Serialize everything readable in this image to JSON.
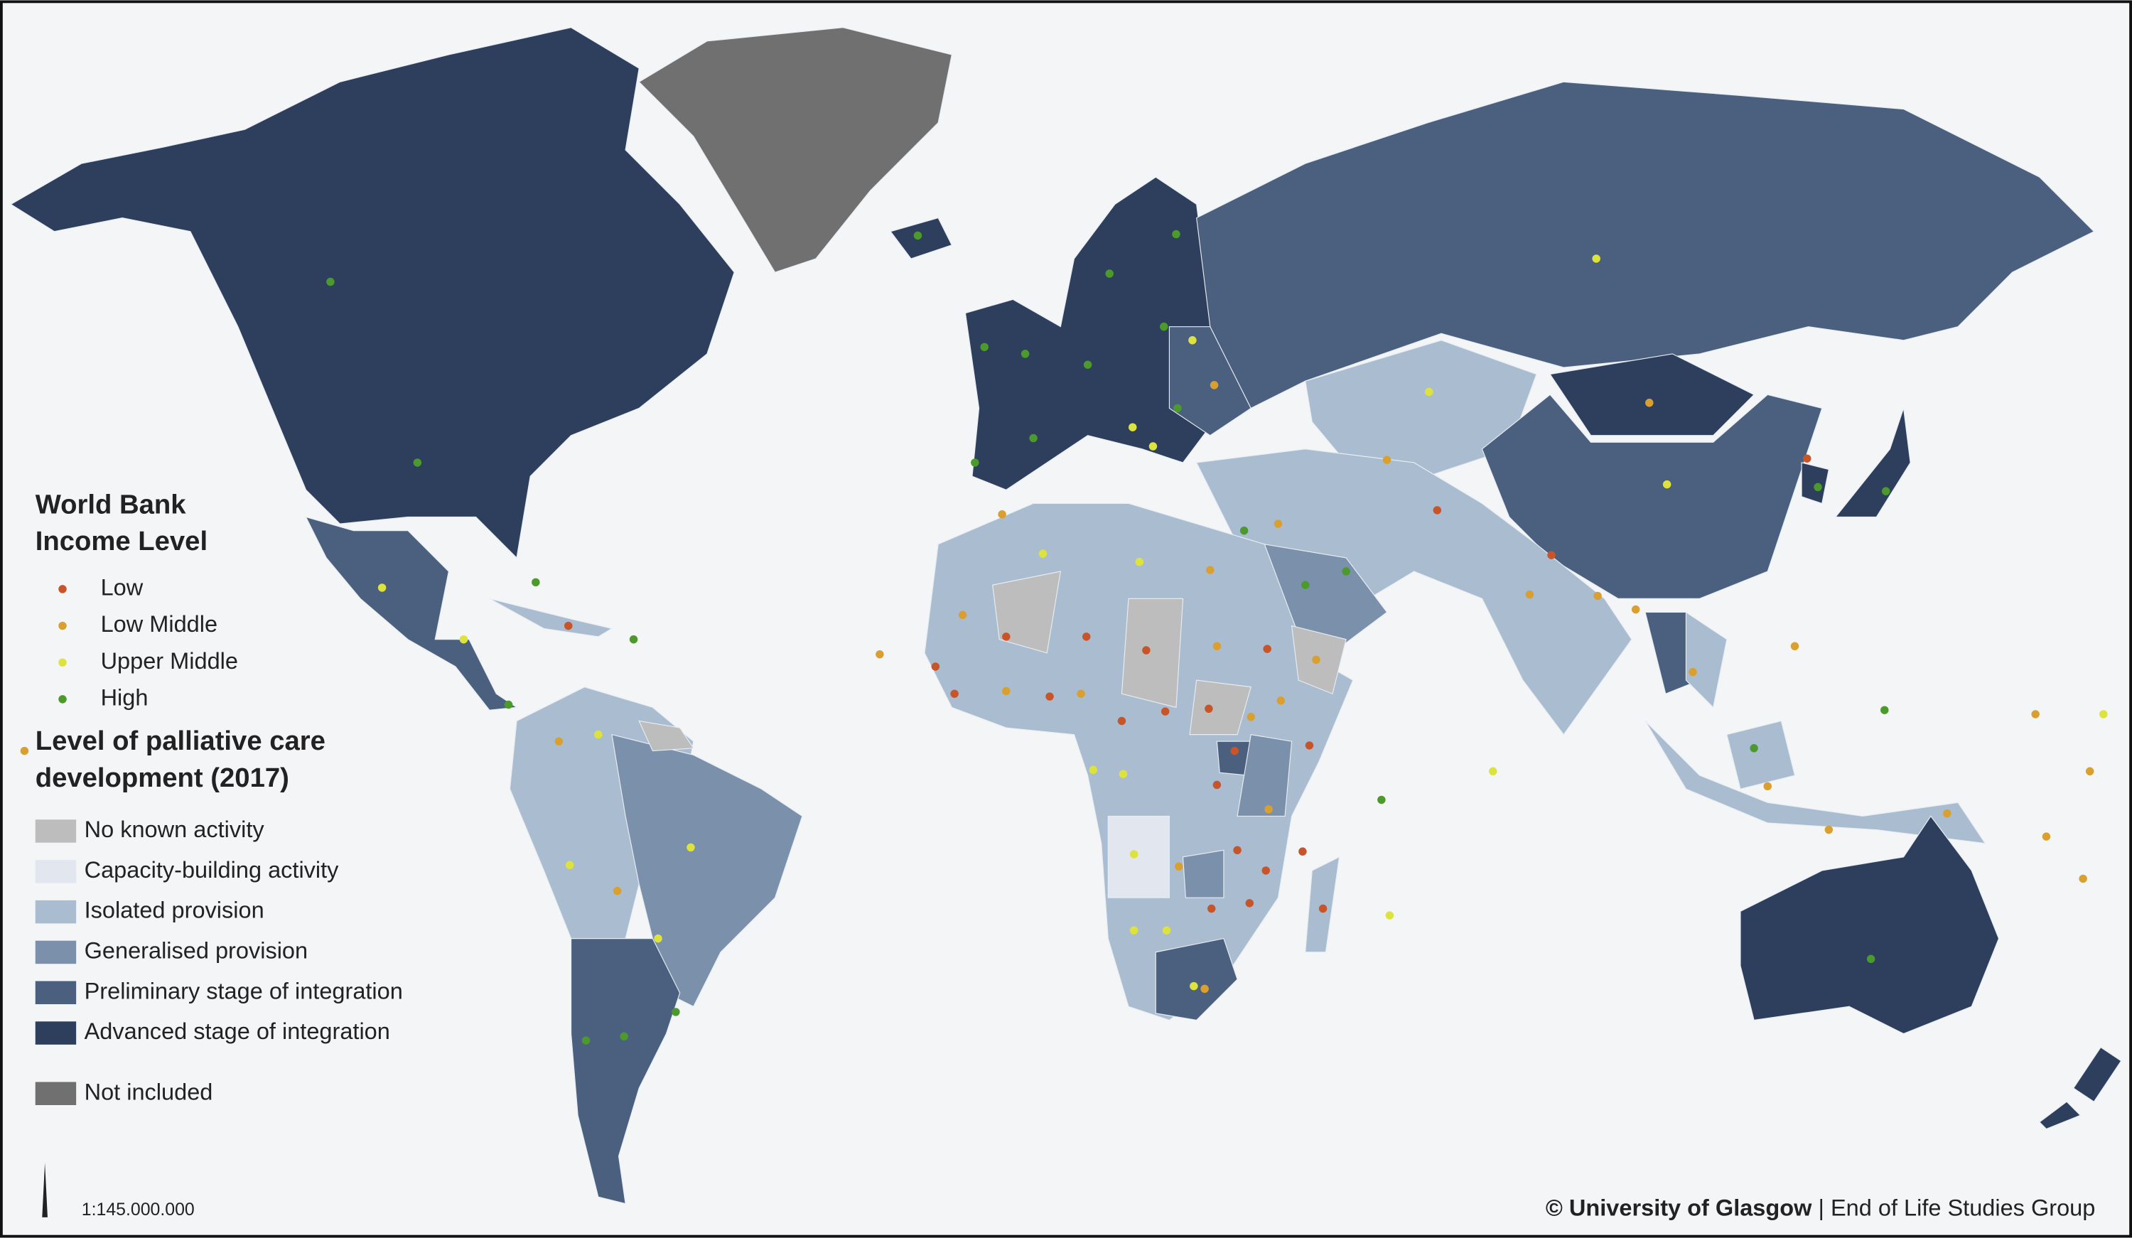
{
  "legend": {
    "income_title": [
      "World Bank",
      "Income Level"
    ],
    "income_items": [
      {
        "label": "Low",
        "color": "#c8552a"
      },
      {
        "label": "Low Middle",
        "color": "#d9a030"
      },
      {
        "label": "Upper Middle",
        "color": "#dde33c"
      },
      {
        "label": "High",
        "color": "#4c9a2c"
      }
    ],
    "care_title": [
      "Level of palliative care",
      "development (2017)"
    ],
    "care_items": [
      {
        "label": "No known activity",
        "color": "#bdbdbd"
      },
      {
        "label": "Capacity-building activity",
        "color": "#e2e7ef"
      },
      {
        "label": "Isolated provision",
        "color": "#aabdd0"
      },
      {
        "label": "Generalised provision",
        "color": "#7b91ab"
      },
      {
        "label": "Preliminary stage of integration",
        "color": "#4a607e"
      },
      {
        "label": "Advanced stage of integration",
        "color": "#2d3f5c"
      }
    ],
    "not_included": {
      "label": "Not included",
      "color": "#707070"
    }
  },
  "scale": "1:145.000.000",
  "credit": {
    "org": "© University of Glasgow",
    "separator": "|",
    "group": "End of Life Studies Group"
  }
}
